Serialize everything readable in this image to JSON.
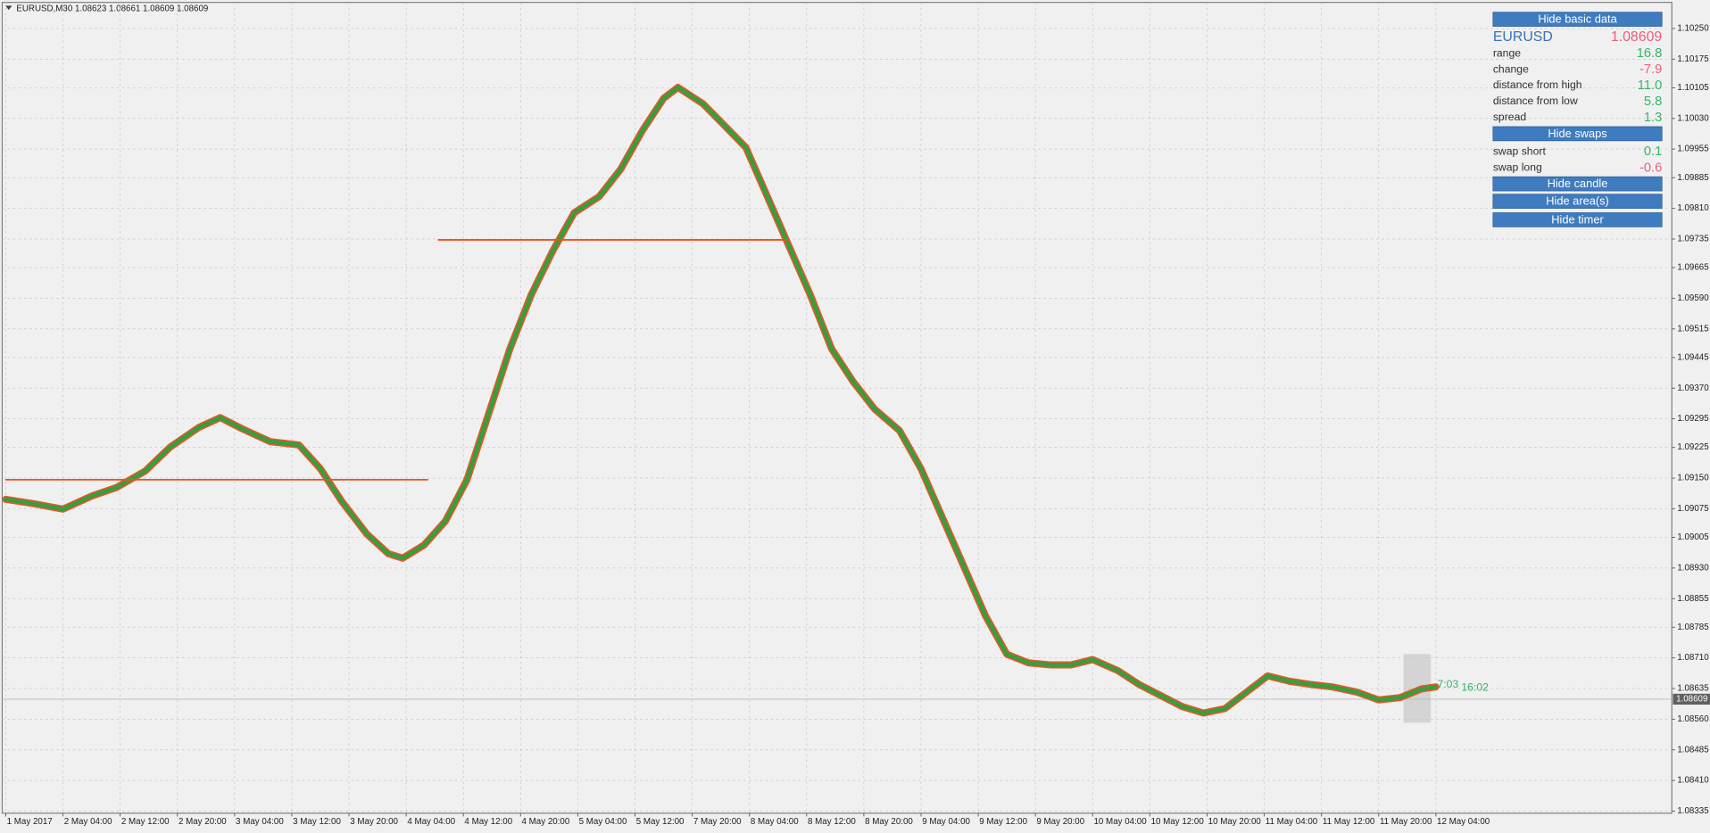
{
  "chart_data": {
    "type": "line",
    "title": "EURUSD,M30  1.08623 1.08661 1.08609 1.08609",
    "xlim": [
      -1,
      466
    ],
    "ylim": [
      1.0833,
      1.10314
    ],
    "xticks": [
      {
        "value": 0,
        "label": "1 May 2017"
      },
      {
        "value": 16,
        "label": "2 May 04:00"
      },
      {
        "value": 32,
        "label": "2 May 12:00"
      },
      {
        "value": 48,
        "label": "2 May 20:00"
      },
      {
        "value": 64,
        "label": "3 May 04:00"
      },
      {
        "value": 80,
        "label": "3 May 12:00"
      },
      {
        "value": 96,
        "label": "3 May 20:00"
      },
      {
        "value": 112,
        "label": "4 May 04:00"
      },
      {
        "value": 128,
        "label": "4 May 12:00"
      },
      {
        "value": 144,
        "label": "4 May 20:00"
      },
      {
        "value": 160,
        "label": "5 May 04:00"
      },
      {
        "value": 176,
        "label": "5 May 12:00"
      },
      {
        "value": 192,
        "label": "7 May 20:00"
      },
      {
        "value": 208,
        "label": "8 May 04:00"
      },
      {
        "value": 224,
        "label": "8 May 12:00"
      },
      {
        "value": 240,
        "label": "8 May 20:00"
      },
      {
        "value": 256,
        "label": "9 May 04:00"
      },
      {
        "value": 272,
        "label": "9 May 12:00"
      },
      {
        "value": 288,
        "label": "9 May 20:00"
      },
      {
        "value": 304,
        "label": "10 May 04:00"
      },
      {
        "value": 320,
        "label": "10 May 12:00"
      },
      {
        "value": 336,
        "label": "10 May 20:00"
      },
      {
        "value": 352,
        "label": "11 May 04:00"
      },
      {
        "value": 368,
        "label": "11 May 12:00"
      },
      {
        "value": 384,
        "label": "11 May 20:00"
      },
      {
        "value": 400,
        "label": "12 May 04:00"
      }
    ],
    "yticks": [
      {
        "value": 1.1025,
        "label": "1.10250"
      },
      {
        "value": 1.10175,
        "label": "1.10175"
      },
      {
        "value": 1.10105,
        "label": "1.10105"
      },
      {
        "value": 1.1003,
        "label": "1.10030"
      },
      {
        "value": 1.09955,
        "label": "1.09955"
      },
      {
        "value": 1.09885,
        "label": "1.09885"
      },
      {
        "value": 1.0981,
        "label": "1.09810"
      },
      {
        "value": 1.09735,
        "label": "1.09735"
      },
      {
        "value": 1.09665,
        "label": "1.09665"
      },
      {
        "value": 1.0959,
        "label": "1.09590"
      },
      {
        "value": 1.09515,
        "label": "1.09515"
      },
      {
        "value": 1.09445,
        "label": "1.09445"
      },
      {
        "value": 1.0937,
        "label": "1.09370"
      },
      {
        "value": 1.09295,
        "label": "1.09295"
      },
      {
        "value": 1.09225,
        "label": "1.09225"
      },
      {
        "value": 1.0915,
        "label": "1.09150"
      },
      {
        "value": 1.09075,
        "label": "1.09075"
      },
      {
        "value": 1.09005,
        "label": "1.09005"
      },
      {
        "value": 1.0893,
        "label": "1.08930"
      },
      {
        "value": 1.08855,
        "label": "1.08855"
      },
      {
        "value": 1.08785,
        "label": "1.08785"
      },
      {
        "value": 1.0871,
        "label": "1.08710"
      },
      {
        "value": 1.08635,
        "label": "1.08635"
      },
      {
        "value": 1.0856,
        "label": "1.08560"
      },
      {
        "value": 1.08485,
        "label": "1.08485"
      },
      {
        "value": 1.0841,
        "label": "1.08410"
      },
      {
        "value": 1.08335,
        "label": "1.08335"
      }
    ],
    "grid": true,
    "bid": 1.08609,
    "series": [
      {
        "color": "#3c9c3c",
        "outline": "#e8552a",
        "width": 4,
        "x": [
          0,
          8,
          16,
          24,
          31,
          39,
          46,
          54,
          60,
          66,
          74,
          82,
          88,
          94,
          101,
          107,
          111,
          117,
          123,
          129,
          135,
          141,
          147,
          153,
          159,
          166,
          172,
          178,
          184,
          188,
          195,
          201,
          207,
          213,
          219,
          225,
          231,
          237,
          243,
          250,
          256,
          262,
          268,
          274,
          280,
          286,
          292,
          298,
          304,
          311,
          317,
          323,
          329,
          335,
          341,
          347,
          353,
          359,
          365,
          371,
          378,
          384,
          390,
          396,
          400
        ],
        "values": [
          1.09098,
          1.09087,
          1.09074,
          1.09106,
          1.09127,
          1.09167,
          1.09226,
          1.09274,
          1.09298,
          1.09271,
          1.09239,
          1.09231,
          1.09173,
          1.09093,
          1.09013,
          1.08965,
          1.08954,
          1.08986,
          1.09045,
          1.09146,
          1.09306,
          1.09466,
          1.09599,
          1.09706,
          1.09799,
          1.09839,
          1.09906,
          1.09999,
          1.10079,
          1.10106,
          1.10066,
          1.10013,
          1.09959,
          1.09839,
          1.09719,
          1.09599,
          1.09466,
          1.09386,
          1.09319,
          1.09266,
          1.09173,
          1.09053,
          1.08933,
          1.08813,
          1.08719,
          1.08698,
          1.08693,
          1.08693,
          1.08706,
          1.08679,
          1.08645,
          1.08618,
          1.08591,
          1.08575,
          1.08586,
          1.08626,
          1.08666,
          1.08653,
          1.08645,
          1.08639,
          1.08626,
          1.08607,
          1.08613,
          1.08634,
          1.08639
        ]
      },
      {
        "color": "#f0501e",
        "width": 1.5,
        "x": [
          0,
          118
        ],
        "values": [
          1.09146,
          1.09146
        ]
      },
      {
        "color": "#f0501e",
        "width": 1.5,
        "x": [
          121,
          219
        ],
        "values": [
          1.09733,
          1.09733
        ]
      }
    ]
  },
  "panel": {
    "buttons": [
      "Hide basic data",
      "Hide swaps",
      "Hide candle",
      "Hide area(s)",
      "Hide timer"
    ],
    "symbol": "EURUSD",
    "price": "1.08609",
    "rows": [
      {
        "label": "range",
        "value": "16.8",
        "color": "#35b468"
      },
      {
        "label": "change",
        "value": "-7.9",
        "color": "#e8607e"
      },
      {
        "label": "distance from high",
        "value": "11.0",
        "color": "#35b468"
      },
      {
        "label": "distance from low",
        "value": "5.8",
        "color": "#35b468"
      },
      {
        "label": "spread",
        "value": "1.3",
        "color": "#35b468"
      }
    ],
    "swap_rows": [
      {
        "label": "swap short",
        "value": "0.1",
        "color": "#35b468"
      },
      {
        "label": "swap long",
        "value": "-0.6",
        "color": "#e8607e"
      }
    ]
  },
  "timer": [
    "7:03",
    "16:02"
  ]
}
